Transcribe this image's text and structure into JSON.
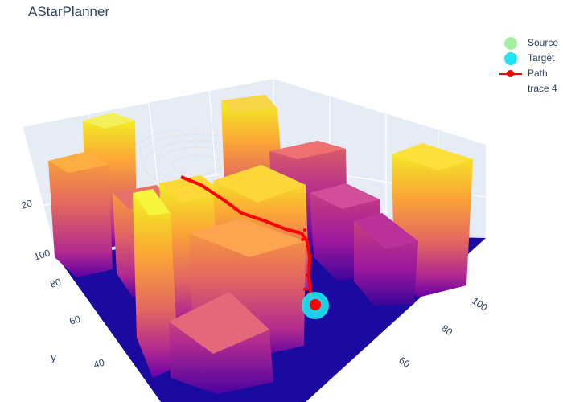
{
  "title": "AStarPlanner",
  "colors": {
    "background_grid": "#e5ecf6",
    "floor": "#1a0aa0",
    "source": "#a4f0a0",
    "target": "#1ee5f0",
    "path": "#ff0000",
    "trace4": "#f0a070"
  },
  "legend": [
    {
      "name": "Source",
      "symbol": "circle",
      "color": "#a4f0a0"
    },
    {
      "name": "Target",
      "symbol": "circle",
      "color": "#1ee5f0"
    },
    {
      "name": "Path",
      "symbol": "line-marker",
      "color": "#ff0000"
    },
    {
      "name": "trace 4",
      "symbol": "none",
      "color": "#ffffff"
    }
  ],
  "chart_data": {
    "type": "3d-surface-scatter",
    "title": "AStarPlanner",
    "axes": {
      "x": {
        "label": "",
        "ticks": [
          "60",
          "80",
          "100"
        ]
      },
      "y": {
        "label": "y",
        "ticks": [
          "40",
          "60",
          "80",
          "100"
        ]
      },
      "z": {
        "label": "",
        "ticks": [
          "20"
        ]
      }
    },
    "series": [
      {
        "name": "Source",
        "type": "scatter3d-marker"
      },
      {
        "name": "Target",
        "type": "scatter3d-marker"
      },
      {
        "name": "Path",
        "type": "scatter3d-line"
      },
      {
        "name": "trace 4",
        "type": "scatter3d-points"
      }
    ],
    "colorscale": "plasma",
    "legend_position": "top-right",
    "grid": true
  }
}
